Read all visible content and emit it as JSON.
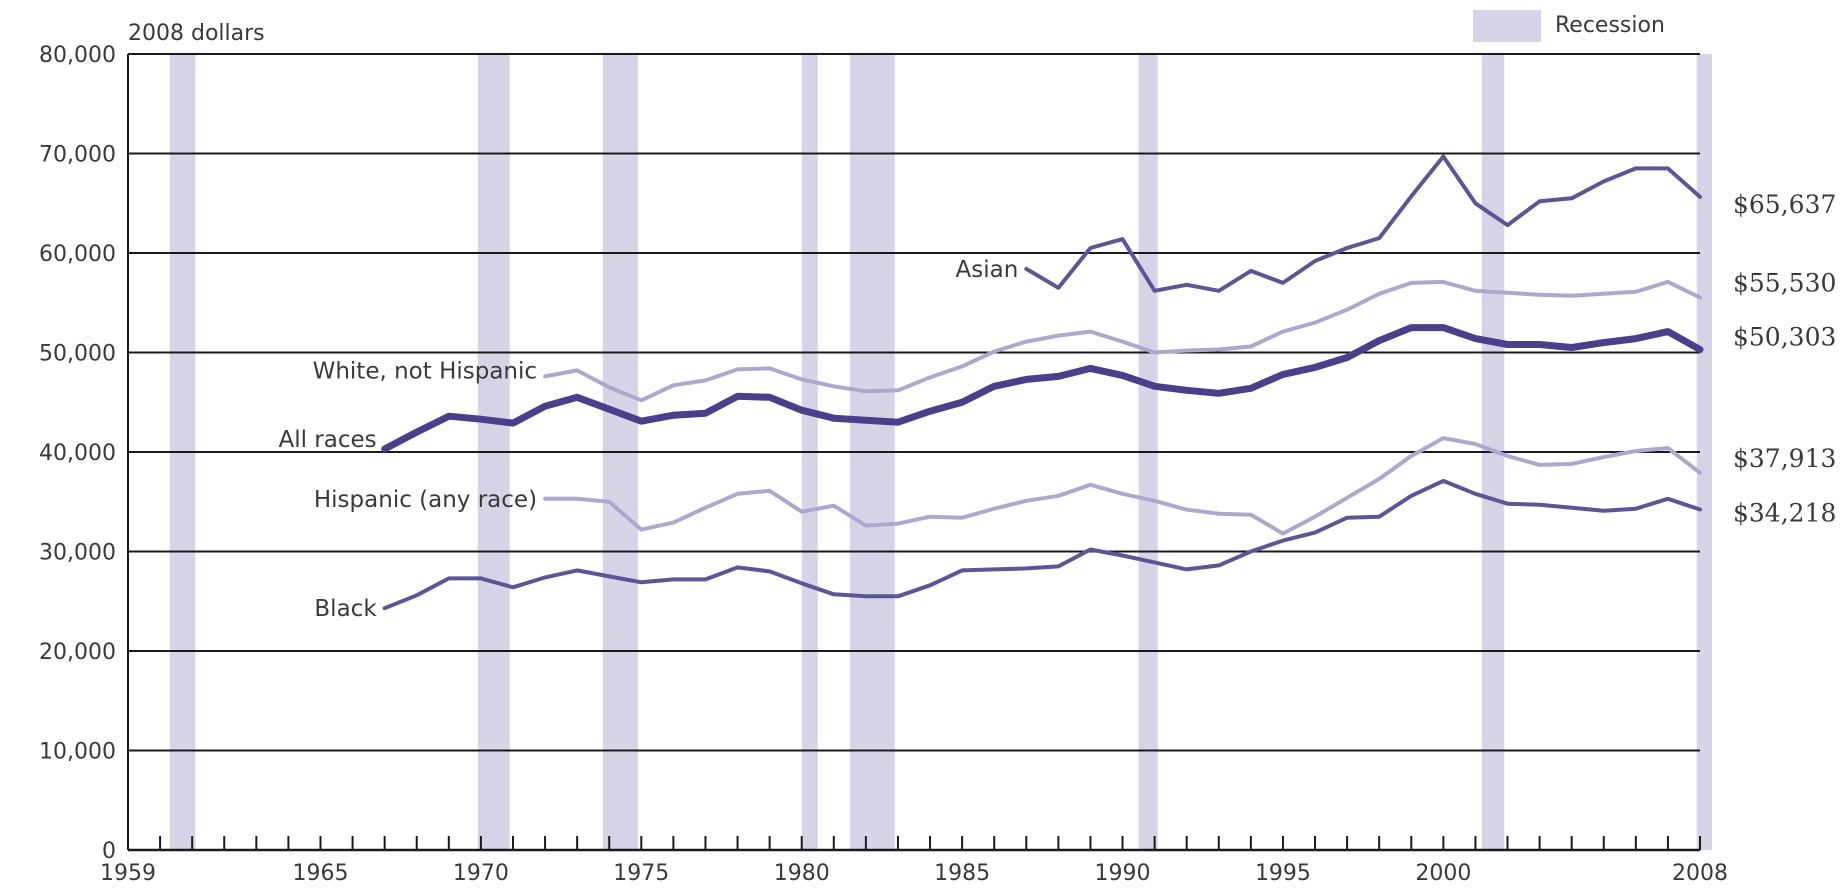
{
  "chart_data": {
    "type": "line",
    "unit_label": "2008 dollars",
    "legend": {
      "label": "Recession",
      "color": "#d8d4e8"
    },
    "xlim": [
      1959,
      2008
    ],
    "ylim": [
      0,
      80000
    ],
    "x_tick_labels": [
      "1959",
      "1965",
      "1970",
      "1975",
      "1980",
      "1985",
      "1990",
      "1995",
      "2000",
      "2008"
    ],
    "x_tick_values": [
      1959,
      1965,
      1970,
      1975,
      1980,
      1985,
      1990,
      1995,
      2000,
      2008
    ],
    "y_ticks": [
      0,
      10000,
      20000,
      30000,
      40000,
      50000,
      60000,
      70000,
      80000
    ],
    "y_tick_labels": [
      "0",
      "10,000",
      "20,000",
      "30,000",
      "40,000",
      "50,000",
      "60,000",
      "70,000",
      "80,000"
    ],
    "grid": true,
    "recessions": [
      [
        1960.3,
        1961.1
      ],
      [
        1969.9,
        1970.9
      ],
      [
        1973.8,
        1974.9
      ],
      [
        1980.0,
        1980.5
      ],
      [
        1981.5,
        1982.9
      ],
      [
        1990.5,
        1991.1
      ],
      [
        2001.2,
        2001.9
      ],
      [
        2007.9,
        2008.6
      ]
    ],
    "series": [
      {
        "name": "Asian",
        "label": "Asian",
        "color": "#5e5597",
        "width": 4,
        "end_label": "$65,637",
        "x": [
          1987,
          1988,
          1989,
          1990,
          1991,
          1992,
          1993,
          1994,
          1995,
          1996,
          1997,
          1998,
          1999,
          2000,
          2001,
          2002,
          2003,
          2004,
          2005,
          2006,
          2007,
          2008
        ],
        "y": [
          58400,
          56500,
          60500,
          61400,
          56200,
          56800,
          56200,
          58200,
          57000,
          59200,
          60500,
          61500,
          65700,
          69700,
          65000,
          62800,
          65200,
          65500,
          67200,
          68500,
          68500,
          65637
        ]
      },
      {
        "name": "White, not Hispanic",
        "label": "White, not Hispanic",
        "color": "#aea8cf",
        "width": 4,
        "end_label": "$55,530",
        "x": [
          1972,
          1973,
          1974,
          1975,
          1976,
          1977,
          1978,
          1979,
          1980,
          1981,
          1982,
          1983,
          1984,
          1985,
          1986,
          1987,
          1988,
          1989,
          1990,
          1991,
          1992,
          1993,
          1994,
          1995,
          1996,
          1997,
          1998,
          1999,
          2000,
          2001,
          2002,
          2003,
          2004,
          2005,
          2006,
          2007,
          2008
        ],
        "y": [
          47600,
          48200,
          46500,
          45200,
          46700,
          47200,
          48300,
          48400,
          47300,
          46600,
          46100,
          46200,
          47500,
          48600,
          50100,
          51100,
          51700,
          52100,
          51100,
          50000,
          50200,
          50300,
          50600,
          52100,
          53000,
          54300,
          55900,
          57000,
          57100,
          56200,
          56000,
          55800,
          55700,
          55900,
          56100,
          57100,
          55530
        ]
      },
      {
        "name": "All races",
        "label": "All races",
        "color": "#4b3f8c",
        "width": 7,
        "end_label": "$50,303",
        "x": [
          1967,
          1968,
          1969,
          1970,
          1971,
          1972,
          1973,
          1974,
          1975,
          1976,
          1977,
          1978,
          1979,
          1980,
          1981,
          1982,
          1983,
          1984,
          1985,
          1986,
          1987,
          1988,
          1989,
          1990,
          1991,
          1992,
          1993,
          1994,
          1995,
          1996,
          1997,
          1998,
          1999,
          2000,
          2001,
          2002,
          2003,
          2004,
          2005,
          2006,
          2007,
          2008
        ],
        "y": [
          40300,
          42000,
          43600,
          43300,
          42900,
          44600,
          45500,
          44300,
          43100,
          43700,
          43900,
          45600,
          45500,
          44200,
          43400,
          43200,
          43000,
          44100,
          45000,
          46600,
          47300,
          47600,
          48400,
          47700,
          46600,
          46200,
          45900,
          46400,
          47800,
          48500,
          49500,
          51200,
          52500,
          52500,
          51400,
          50800,
          50800,
          50500,
          51000,
          51400,
          52100,
          50303
        ]
      },
      {
        "name": "Hispanic (any race)",
        "label": "Hispanic (any race)",
        "color": "#aea8cf",
        "width": 4,
        "end_label": "$37,913",
        "x": [
          1972,
          1973,
          1974,
          1975,
          1976,
          1977,
          1978,
          1979,
          1980,
          1981,
          1982,
          1983,
          1984,
          1985,
          1986,
          1987,
          1988,
          1989,
          1990,
          1991,
          1992,
          1993,
          1994,
          1995,
          1996,
          1997,
          1998,
          1999,
          2000,
          2001,
          2002,
          2003,
          2004,
          2005,
          2006,
          2007,
          2008
        ],
        "y": [
          35300,
          35300,
          35000,
          32200,
          32900,
          34400,
          35800,
          36100,
          34000,
          34600,
          32600,
          32800,
          33500,
          33400,
          34300,
          35100,
          35600,
          36700,
          35800,
          35100,
          34200,
          33800,
          33700,
          31800,
          33500,
          35400,
          37300,
          39600,
          41400,
          40800,
          39600,
          38700,
          38800,
          39500,
          40100,
          40400,
          37913
        ]
      },
      {
        "name": "Black",
        "label": "Black",
        "color": "#5e5597",
        "width": 4,
        "end_label": "$34,218",
        "x": [
          1967,
          1968,
          1969,
          1970,
          1971,
          1972,
          1973,
          1974,
          1975,
          1976,
          1977,
          1978,
          1979,
          1980,
          1981,
          1982,
          1983,
          1984,
          1985,
          1986,
          1987,
          1988,
          1989,
          1990,
          1991,
          1992,
          1993,
          1994,
          1995,
          1996,
          1997,
          1998,
          1999,
          2000,
          2001,
          2002,
          2003,
          2004,
          2005,
          2006,
          2007,
          2008
        ],
        "y": [
          24300,
          25600,
          27300,
          27300,
          26400,
          27400,
          28100,
          27500,
          26900,
          27200,
          27200,
          28400,
          28000,
          26800,
          25700,
          25500,
          25500,
          26600,
          28100,
          28200,
          28300,
          28500,
          30200,
          29600,
          28900,
          28200,
          28600,
          30000,
          31100,
          31900,
          33400,
          33500,
          35600,
          37100,
          35800,
          34800,
          34700,
          34400,
          34100,
          34300,
          35300,
          34218
        ]
      }
    ]
  }
}
